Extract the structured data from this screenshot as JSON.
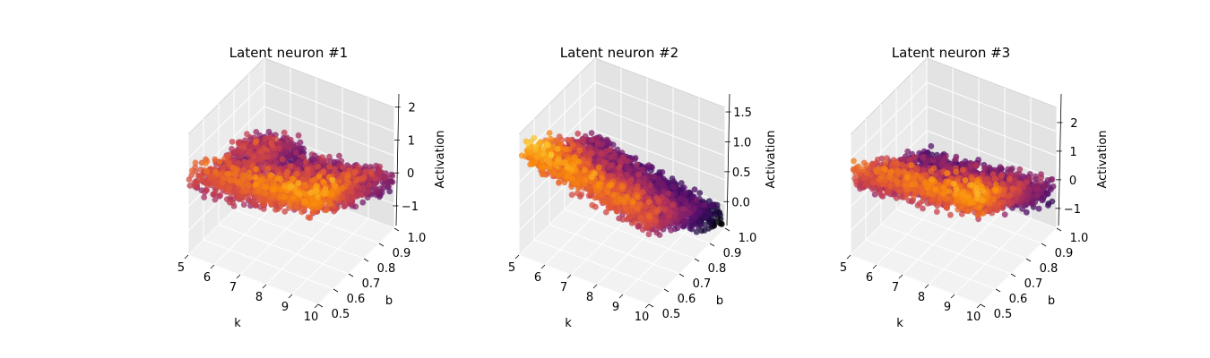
{
  "colormap": "inferno",
  "chart_data": [
    {
      "type": "scatter3d",
      "title": "Latent neuron #1",
      "xlabel": "k",
      "ylabel": "b",
      "zlabel": "Activation",
      "xlim": [
        5,
        10
      ],
      "ylim": [
        0.5,
        1.0
      ],
      "zlim": [
        -1.6,
        2.4
      ],
      "xticks": [
        "5",
        "6",
        "7",
        "8",
        "9",
        "10"
      ],
      "yticks": [
        "0.5",
        "0.6",
        "0.7",
        "0.8",
        "0.9",
        "1.0"
      ],
      "zticks": [
        "−1",
        "0",
        "1",
        "2"
      ],
      "surface": {
        "base": 0.3,
        "slope_k": 0.45,
        "slope_b": -1.6,
        "noise": 0.45
      },
      "grid": true
    },
    {
      "type": "scatter3d",
      "title": "Latent neuron #2",
      "xlabel": "k",
      "ylabel": "b",
      "zlabel": "Activation",
      "xlim": [
        5,
        10
      ],
      "ylim": [
        0.5,
        1.0
      ],
      "zlim": [
        -0.4,
        1.8
      ],
      "xticks": [
        "5",
        "6",
        "7",
        "8",
        "9",
        "10"
      ],
      "yticks": [
        "0.5",
        "0.6",
        "0.7",
        "0.8",
        "0.9",
        "1.0"
      ],
      "zticks": [
        "0.0",
        "0.5",
        "1.0",
        "1.5"
      ],
      "surface": {
        "base": 0.6,
        "slope_k": -0.22,
        "slope_b": -1.2,
        "noise": 0.22
      },
      "grid": true
    },
    {
      "type": "scatter3d",
      "title": "Latent neuron #3",
      "xlabel": "k",
      "ylabel": "b",
      "zlabel": "Activation",
      "xlim": [
        5,
        10
      ],
      "ylim": [
        0.5,
        1.0
      ],
      "zlim": [
        -1.6,
        3.0
      ],
      "xticks": [
        "5",
        "6",
        "7",
        "8",
        "9",
        "10"
      ],
      "yticks": [
        "0.5",
        "0.6",
        "0.7",
        "0.8",
        "0.9",
        "1.0"
      ],
      "zticks": [
        "−1",
        "0",
        "1",
        "2"
      ],
      "surface": {
        "base": 0.5,
        "slope_k": 0.35,
        "slope_b": -2.2,
        "noise": 0.5
      },
      "grid": true
    }
  ]
}
